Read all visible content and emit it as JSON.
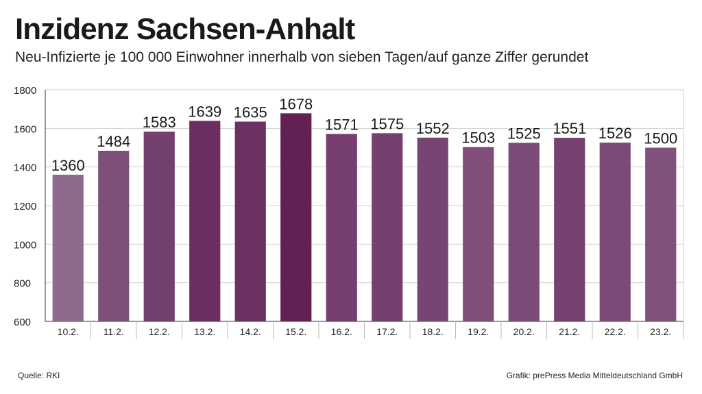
{
  "header": {
    "title": "Inzidenz Sachsen-Anhalt",
    "subtitle": "Neu-Infizierte je 100 000 Einwohner innerhalb von sieben Tagen/auf ganze Ziffer gerundet"
  },
  "footer": {
    "source": "Quelle: RKI",
    "credit": "Grafik: prePress Media Mitteldeutschland GmbH"
  },
  "chart_data": {
    "type": "bar",
    "categories": [
      "10.2.",
      "11.2.",
      "12.2.",
      "13.2.",
      "14.2.",
      "15.2.",
      "16.2.",
      "17.2.",
      "18.2.",
      "19.2.",
      "20.2.",
      "21.2.",
      "22.2.",
      "23.2."
    ],
    "values": [
      1360,
      1484,
      1583,
      1639,
      1635,
      1678,
      1571,
      1575,
      1552,
      1503,
      1525,
      1551,
      1526,
      1500
    ],
    "ylim": [
      600,
      1800
    ],
    "yticks": [
      600,
      800,
      1000,
      1200,
      1400,
      1600,
      1800
    ],
    "grid": "horizontal",
    "bar_colors": [
      "#8e6a8c",
      "#7d5079",
      "#733f6c",
      "#6a2e61",
      "#6b3163",
      "#612253",
      "#763e6e",
      "#75406e",
      "#784572",
      "#7f4e79",
      "#7c4a76",
      "#76406f",
      "#7c4a76",
      "#80517a"
    ]
  }
}
